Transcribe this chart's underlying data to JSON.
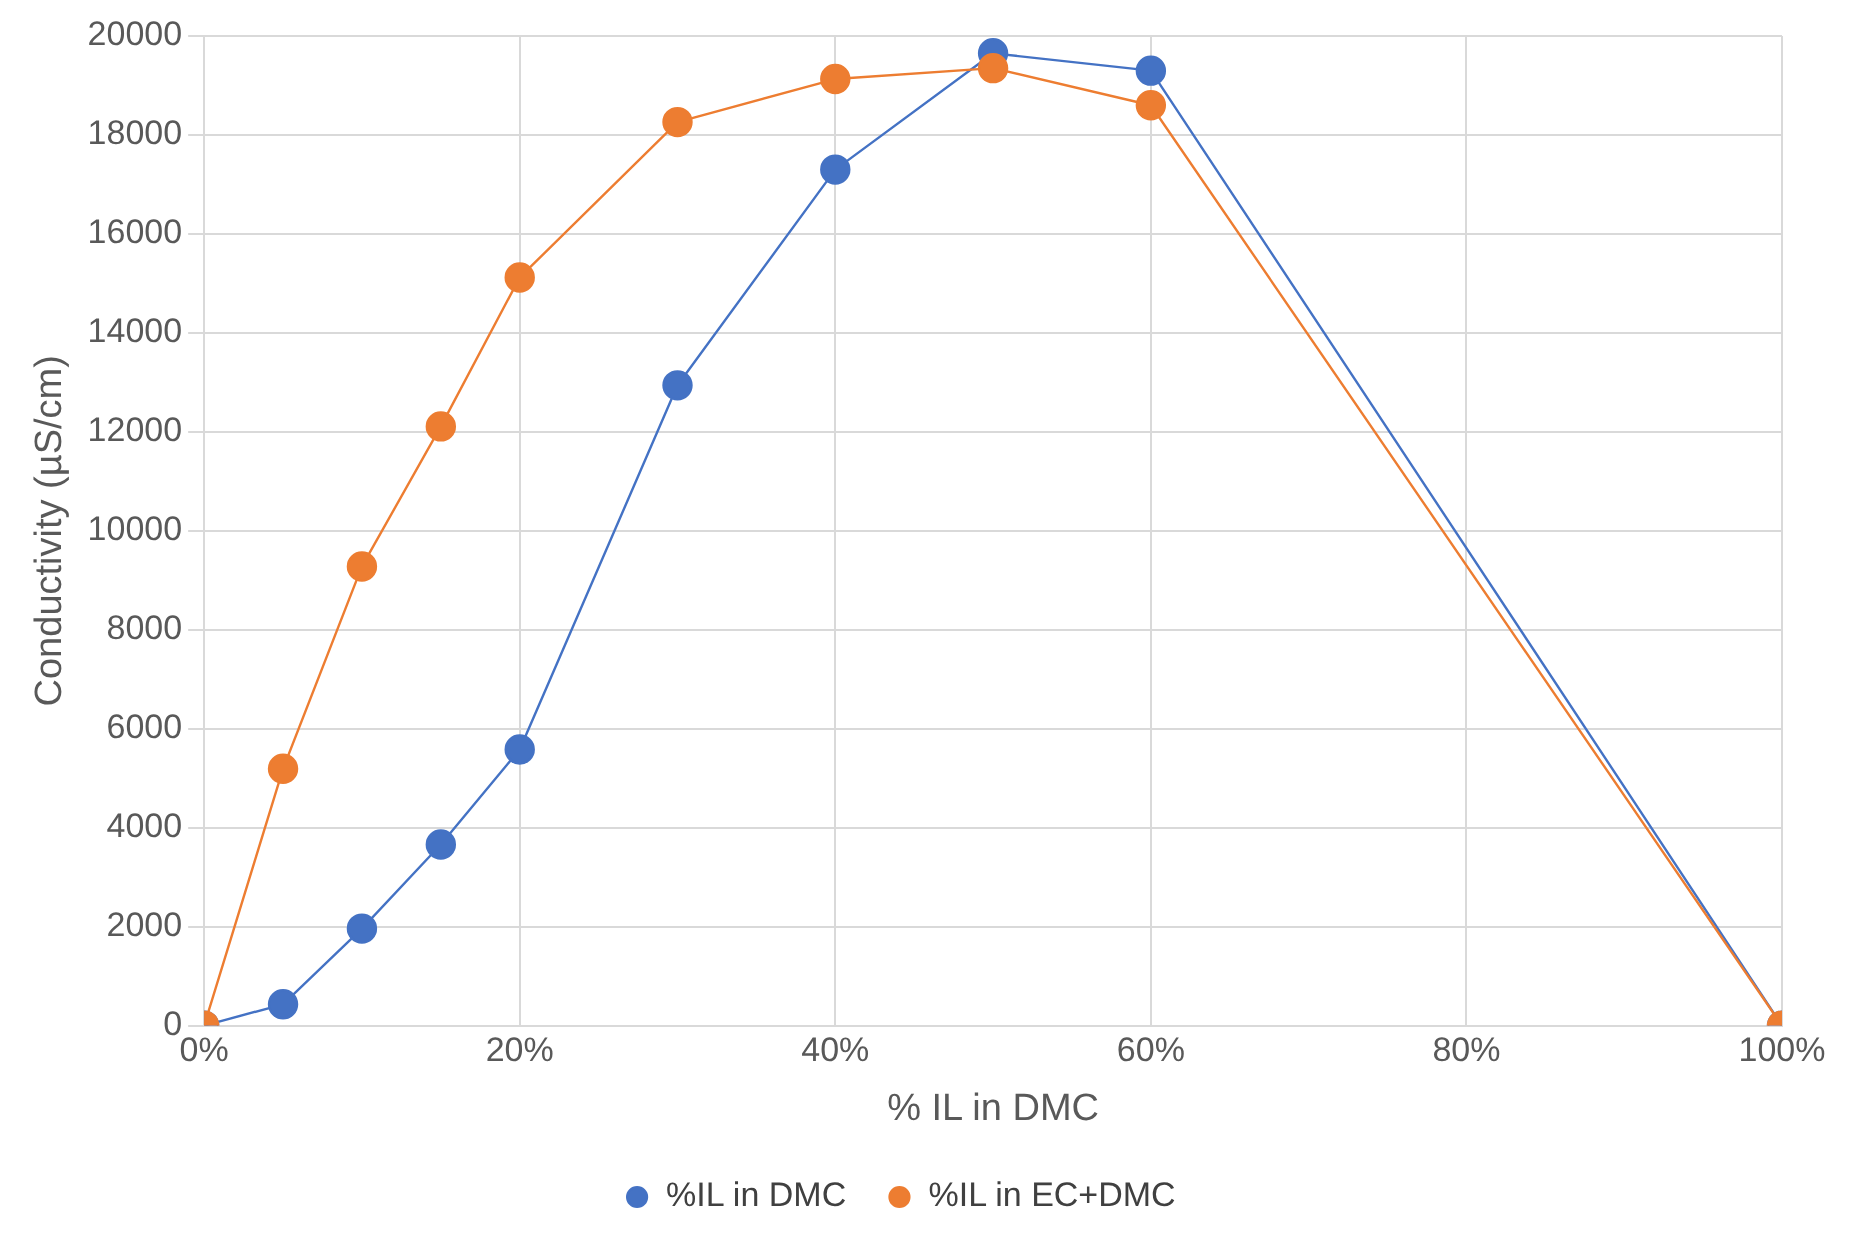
{
  "chart_data": {
    "type": "line",
    "xlabel": "% IL in DMC",
    "ylabel": "Conductivity (µS/cm)",
    "xlim": [
      0,
      100
    ],
    "xticks": [
      {
        "value": 0,
        "label": "0%"
      },
      {
        "value": 20,
        "label": "20%"
      },
      {
        "value": 40,
        "label": "40%"
      },
      {
        "value": 60,
        "label": "60%"
      },
      {
        "value": 80,
        "label": "80%"
      },
      {
        "value": 100,
        "label": "100%"
      }
    ],
    "ylim": [
      0,
      20000
    ],
    "yticks": [
      0,
      2000,
      4000,
      6000,
      8000,
      10000,
      12000,
      14000,
      16000,
      18000,
      20000
    ],
    "x": [
      0,
      5,
      10,
      15,
      20,
      30,
      40,
      50,
      60,
      100
    ],
    "series": [
      {
        "name": "%IL in DMC",
        "color": "#4472c4",
        "values": [
          0,
          430,
          1960,
          3660,
          5580,
          12940,
          17300,
          19650,
          19300,
          0
        ]
      },
      {
        "name": "%IL in EC+DMC",
        "color": "#ed7d31",
        "values": [
          0,
          5190,
          9280,
          12110,
          15120,
          18260,
          19130,
          19350,
          18600,
          0
        ]
      }
    ],
    "grid": true,
    "legend": "bottom",
    "marker": "circle",
    "line_style": "solid"
  }
}
